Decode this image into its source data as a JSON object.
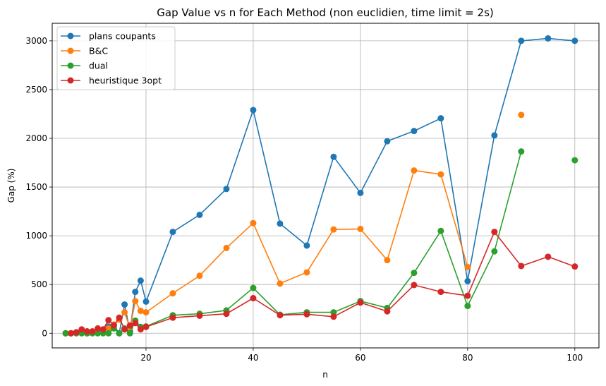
{
  "chart_data": {
    "type": "line",
    "title": "Gap Value vs n for Each Method (non euclidien, time limit = 2s)",
    "xlabel": "n",
    "ylabel": "Gap (%)",
    "xlim": [
      2.5,
      104.5
    ],
    "ylim": [
      -150,
      3180
    ],
    "xticks": [
      20,
      40,
      60,
      80,
      100
    ],
    "yticks": [
      0,
      500,
      1000,
      1500,
      2000,
      2500,
      3000
    ],
    "grid": true,
    "legend_position": "top-left",
    "series": [
      {
        "name": "plans coupants",
        "color": "#1f77b4",
        "points": [
          [
            5,
            0
          ],
          [
            6,
            0
          ],
          [
            7,
            10
          ],
          [
            8,
            20
          ],
          [
            9,
            0
          ],
          [
            10,
            10
          ],
          [
            11,
            20
          ],
          [
            12,
            20
          ],
          [
            13,
            70
          ],
          [
            14,
            80
          ],
          [
            15,
            0
          ],
          [
            16,
            295
          ],
          [
            17,
            20
          ],
          [
            18,
            425
          ],
          [
            19,
            540
          ],
          [
            20,
            325
          ],
          [
            25,
            1040
          ],
          [
            30,
            1215
          ],
          [
            35,
            1480
          ],
          [
            40,
            2290
          ],
          [
            45,
            1125
          ],
          [
            50,
            900
          ],
          [
            55,
            1810
          ],
          [
            60,
            1440
          ],
          [
            65,
            1970
          ],
          [
            70,
            2075
          ],
          [
            75,
            2205
          ],
          [
            80,
            535
          ],
          [
            85,
            2030
          ],
          [
            90,
            3000
          ],
          [
            95,
            3025
          ],
          [
            100,
            3000
          ]
        ]
      },
      {
        "name": "B&C",
        "color": "#ff7f0e",
        "points": [
          [
            5,
            0
          ],
          [
            6,
            0
          ],
          [
            7,
            10
          ],
          [
            8,
            20
          ],
          [
            9,
            0
          ],
          [
            10,
            10
          ],
          [
            11,
            20
          ],
          [
            12,
            20
          ],
          [
            13,
            50
          ],
          [
            14,
            90
          ],
          [
            15,
            140
          ],
          [
            16,
            215
          ],
          [
            17,
            55
          ],
          [
            18,
            330
          ],
          [
            19,
            230
          ],
          [
            20,
            215
          ],
          [
            25,
            410
          ],
          [
            30,
            590
          ],
          [
            35,
            875
          ],
          [
            40,
            1130
          ],
          [
            45,
            510
          ],
          [
            50,
            625
          ],
          [
            55,
            1065
          ],
          [
            60,
            1070
          ],
          [
            65,
            750
          ],
          [
            70,
            1670
          ],
          [
            75,
            1630
          ],
          [
            80,
            680
          ],
          [
            85,
            null
          ],
          [
            90,
            2240
          ]
        ]
      },
      {
        "name": "dual",
        "color": "#2ca02c",
        "points": [
          [
            5,
            0
          ],
          [
            6,
            0
          ],
          [
            7,
            0
          ],
          [
            8,
            0
          ],
          [
            9,
            0
          ],
          [
            10,
            0
          ],
          [
            11,
            0
          ],
          [
            12,
            0
          ],
          [
            13,
            0
          ],
          [
            14,
            50
          ],
          [
            15,
            0
          ],
          [
            16,
            50
          ],
          [
            17,
            0
          ],
          [
            18,
            130
          ],
          [
            19,
            65
          ],
          [
            20,
            70
          ],
          [
            25,
            185
          ],
          [
            30,
            200
          ],
          [
            35,
            235
          ],
          [
            40,
            465
          ],
          [
            45,
            190
          ],
          [
            50,
            215
          ],
          [
            55,
            215
          ],
          [
            60,
            330
          ],
          [
            65,
            260
          ],
          [
            70,
            620
          ],
          [
            75,
            1050
          ],
          [
            80,
            280
          ],
          [
            85,
            840
          ],
          [
            90,
            1865
          ],
          [
            95,
            null
          ],
          [
            100,
            1775
          ]
        ]
      },
      {
        "name": "heuristique 3opt",
        "color": "#d62728",
        "points": [
          [
            6,
            0
          ],
          [
            7,
            10
          ],
          [
            8,
            40
          ],
          [
            9,
            20
          ],
          [
            10,
            20
          ],
          [
            11,
            50
          ],
          [
            12,
            40
          ],
          [
            13,
            135
          ],
          [
            14,
            80
          ],
          [
            15,
            160
          ],
          [
            16,
            40
          ],
          [
            17,
            80
          ],
          [
            18,
            105
          ],
          [
            19,
            40
          ],
          [
            20,
            65
          ],
          [
            25,
            160
          ],
          [
            30,
            180
          ],
          [
            35,
            200
          ],
          [
            40,
            360
          ],
          [
            45,
            185
          ],
          [
            50,
            195
          ],
          [
            55,
            170
          ],
          [
            60,
            315
          ],
          [
            65,
            225
          ],
          [
            70,
            495
          ],
          [
            75,
            425
          ],
          [
            80,
            385
          ],
          [
            85,
            1040
          ],
          [
            90,
            690
          ],
          [
            95,
            785
          ],
          [
            100,
            685
          ]
        ]
      }
    ]
  }
}
